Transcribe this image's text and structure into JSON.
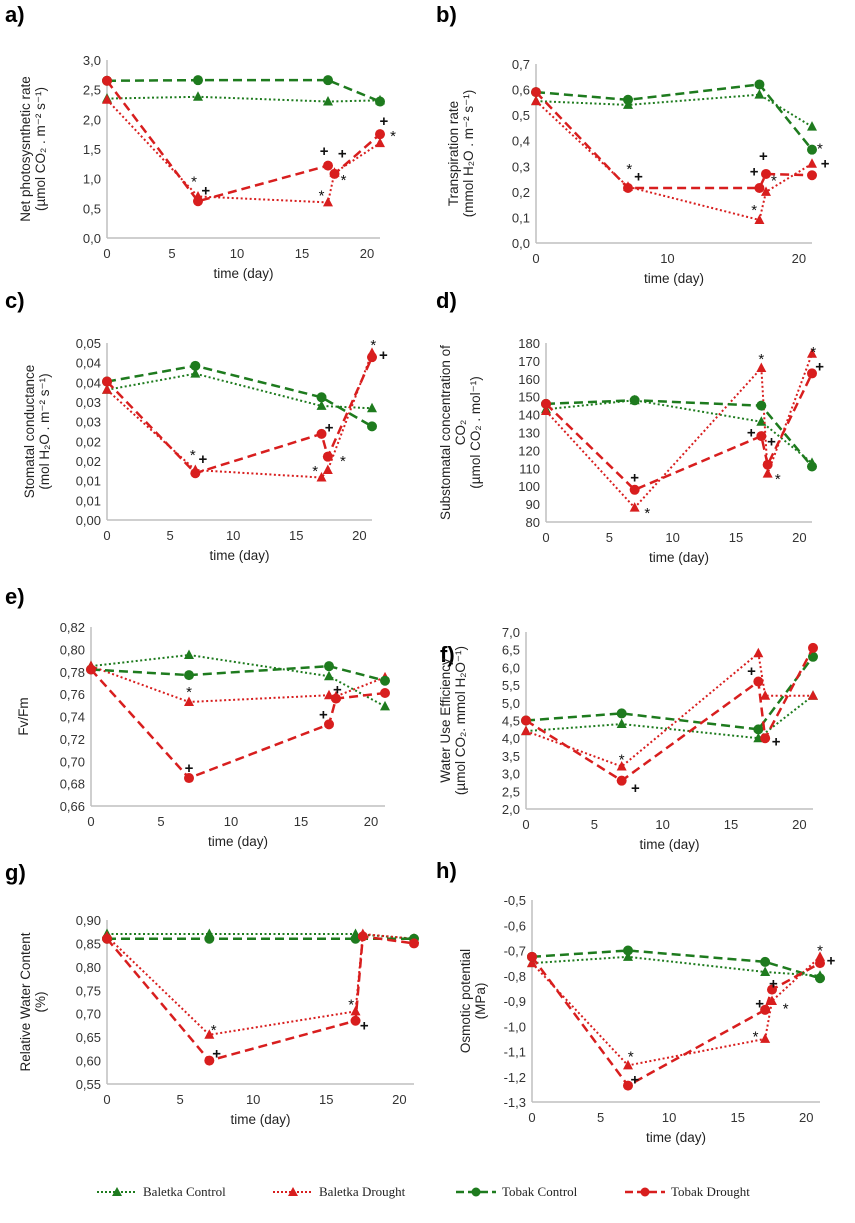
{
  "colors": {
    "control": "#1e7b1e",
    "drought": "#d81e1e",
    "axis": "#bfbfbf"
  },
  "series_styles": [
    {
      "name": "Baletka Control",
      "color": "control",
      "line": "dotted",
      "marker": "triangle"
    },
    {
      "name": "Baletka Drought",
      "color": "drought",
      "line": "dotted",
      "marker": "triangle"
    },
    {
      "name": "Tobak Control",
      "color": "control",
      "line": "dashed",
      "marker": "circle"
    },
    {
      "name": "Tobak Drought",
      "color": "drought",
      "line": "dashed",
      "marker": "circle"
    }
  ],
  "legend": {
    "items": [
      "Baletka Control",
      "Baletka Drought",
      "Tobak Control",
      "Tobak Drought"
    ],
    "placement": "bottom"
  },
  "chart_data": [
    {
      "panel": "a)",
      "type": "line",
      "xlabel": "time (day)",
      "ylabel": [
        "Net photosysnthetic rate",
        "(µmol CO₂ . m⁻² s⁻¹)"
      ],
      "xlim": [
        0,
        21
      ],
      "xticks": [
        0,
        5,
        10,
        15,
        20
      ],
      "ylim": [
        0,
        3
      ],
      "yticks": [
        0,
        0.5,
        1,
        1.5,
        2,
        2.5,
        3
      ],
      "ytick_labels": [
        "0,0",
        "0,5",
        "1,0",
        "1,5",
        "2,0",
        "2,5",
        "3,0"
      ],
      "series": [
        {
          "name": "Baletka Control",
          "x": [
            0,
            7,
            17,
            21
          ],
          "y": [
            2.35,
            2.38,
            2.3,
            2.32
          ]
        },
        {
          "name": "Baletka Drought",
          "x": [
            0,
            7,
            17,
            17.5,
            21
          ],
          "y": [
            2.33,
            0.7,
            0.6,
            1.1,
            1.6
          ]
        },
        {
          "name": "Tobak Control",
          "x": [
            0,
            7,
            17,
            21
          ],
          "y": [
            2.65,
            2.66,
            2.66,
            2.3
          ]
        },
        {
          "name": "Tobak Drought",
          "x": [
            0,
            7,
            17,
            17.5,
            21
          ],
          "y": [
            2.65,
            0.62,
            1.22,
            1.08,
            1.75
          ]
        }
      ],
      "annotations": [
        {
          "t": "*",
          "x": 6.7,
          "y": 0.95
        },
        {
          "t": "+",
          "x": 7.6,
          "y": 0.8
        },
        {
          "t": "+",
          "x": 16.7,
          "y": 1.47
        },
        {
          "t": "+",
          "x": 18.1,
          "y": 1.42
        },
        {
          "t": "*",
          "x": 16.5,
          "y": 0.72
        },
        {
          "t": "*",
          "x": 18.2,
          "y": 0.98
        },
        {
          "t": "+",
          "x": 21.3,
          "y": 1.97
        },
        {
          "t": "*",
          "x": 22,
          "y": 1.72
        }
      ]
    },
    {
      "panel": "b)",
      "type": "line",
      "xlabel": "time (day)",
      "ylabel": [
        "Transpiration rate",
        "(mmol H₂O . m⁻² s⁻¹)"
      ],
      "xlim": [
        0,
        21
      ],
      "xticks": [
        0,
        10,
        20
      ],
      "ylim": [
        0,
        0.7
      ],
      "yticks": [
        0,
        0.1,
        0.2,
        0.3,
        0.4,
        0.5,
        0.6,
        0.7
      ],
      "ytick_labels": [
        "0,0",
        "0,1",
        "0,2",
        "0,3",
        "0,4",
        "0,5",
        "0,6",
        "0,7"
      ],
      "series": [
        {
          "name": "Baletka Control",
          "x": [
            0,
            7,
            17,
            21
          ],
          "y": [
            0.555,
            0.54,
            0.58,
            0.455
          ]
        },
        {
          "name": "Baletka Drought",
          "x": [
            0,
            7,
            17,
            17.5,
            21
          ],
          "y": [
            0.555,
            0.22,
            0.09,
            0.2,
            0.31
          ]
        },
        {
          "name": "Tobak Control",
          "x": [
            0,
            7,
            17,
            21
          ],
          "y": [
            0.59,
            0.56,
            0.62,
            0.365
          ]
        },
        {
          "name": "Tobak Drought",
          "x": [
            0,
            7,
            17,
            17.5,
            21
          ],
          "y": [
            0.59,
            0.215,
            0.215,
            0.27,
            0.265
          ]
        }
      ],
      "annotations": [
        {
          "t": "*",
          "x": 7.1,
          "y": 0.29
        },
        {
          "t": "+",
          "x": 7.8,
          "y": 0.26
        },
        {
          "t": "+",
          "x": 16.6,
          "y": 0.28
        },
        {
          "t": "+",
          "x": 17.3,
          "y": 0.34
        },
        {
          "t": "*",
          "x": 16.6,
          "y": 0.13
        },
        {
          "t": "*",
          "x": 18.1,
          "y": 0.245
        },
        {
          "t": "*",
          "x": 21.6,
          "y": 0.37
        },
        {
          "t": "+",
          "x": 22,
          "y": 0.31
        }
      ]
    },
    {
      "panel": "c)",
      "type": "line",
      "xlabel": "time (day)",
      "ylabel": [
        "Stomatal conductance",
        "(mol H₂O . m⁻² s⁻¹)"
      ],
      "xlim": [
        0,
        21
      ],
      "xticks": [
        0,
        5,
        10,
        15,
        20
      ],
      "ylim": [
        0,
        0.045
      ],
      "yticks": [
        0,
        0.005,
        0.01,
        0.015,
        0.02,
        0.025,
        0.03,
        0.035,
        0.04,
        0.045
      ],
      "ytick_labels": [
        "0,00",
        "0,01",
        "0,01",
        "0,02",
        "0,02",
        "0,03",
        "0,03",
        "0,04",
        "0,04",
        "0,05"
      ],
      "series": [
        {
          "name": "Baletka Control",
          "x": [
            0,
            7,
            17,
            21
          ],
          "y": [
            0.0331,
            0.0372,
            0.029,
            0.0284
          ]
        },
        {
          "name": "Baletka Drought",
          "x": [
            0,
            7,
            17,
            17.5,
            21
          ],
          "y": [
            0.0331,
            0.0127,
            0.0108,
            0.0127,
            0.0425
          ]
        },
        {
          "name": "Tobak Control",
          "x": [
            0,
            7,
            17,
            21
          ],
          "y": [
            0.0352,
            0.0392,
            0.0312,
            0.0238
          ]
        },
        {
          "name": "Tobak Drought",
          "x": [
            0,
            7,
            17,
            17.5,
            21
          ],
          "y": [
            0.0352,
            0.0119,
            0.0219,
            0.0161,
            0.0414
          ]
        }
      ],
      "annotations": [
        {
          "t": "*",
          "x": 6.8,
          "y": 0.0165
        },
        {
          "t": "+",
          "x": 7.6,
          "y": 0.0155
        },
        {
          "t": "+",
          "x": 17.6,
          "y": 0.0235
        },
        {
          "t": "*",
          "x": 16.5,
          "y": 0.0125
        },
        {
          "t": "*",
          "x": 18.7,
          "y": 0.015
        },
        {
          "t": "*",
          "x": 21.1,
          "y": 0.0445
        },
        {
          "t": "+",
          "x": 21.9,
          "y": 0.042
        }
      ]
    },
    {
      "panel": "d)",
      "type": "line",
      "xlabel": "time (day)",
      "ylabel": [
        "Substomatal concentration of",
        "CO₂",
        "(µmol CO₂ . mol⁻¹)"
      ],
      "xlim": [
        0,
        21
      ],
      "xticks": [
        0,
        5,
        10,
        15,
        20
      ],
      "ylim": [
        80,
        180
      ],
      "yticks": [
        80,
        90,
        100,
        110,
        120,
        130,
        140,
        150,
        160,
        170,
        180
      ],
      "ytick_labels": [
        "80",
        "90",
        "100",
        "110",
        "120",
        "130",
        "140",
        "150",
        "160",
        "170",
        "180"
      ],
      "series": [
        {
          "name": "Baletka Control",
          "x": [
            0,
            7,
            17,
            21
          ],
          "y": [
            143,
            148,
            136,
            113
          ]
        },
        {
          "name": "Baletka Drought",
          "x": [
            0,
            7,
            17,
            17.5,
            21
          ],
          "y": [
            142,
            88,
            166,
            107,
            174
          ]
        },
        {
          "name": "Tobak Control",
          "x": [
            0,
            7,
            17,
            21
          ],
          "y": [
            146,
            148,
            145,
            111
          ]
        },
        {
          "name": "Tobak Drought",
          "x": [
            0,
            7,
            17,
            17.5,
            21
          ],
          "y": [
            146,
            98,
            128,
            112,
            163
          ]
        }
      ],
      "annotations": [
        {
          "t": "+",
          "x": 7,
          "y": 105
        },
        {
          "t": "*",
          "x": 8,
          "y": 85
        },
        {
          "t": "*",
          "x": 17,
          "y": 171
        },
        {
          "t": "+",
          "x": 16.2,
          "y": 130
        },
        {
          "t": "+",
          "x": 17.8,
          "y": 125
        },
        {
          "t": "*",
          "x": 18.3,
          "y": 104
        },
        {
          "t": "*",
          "x": 21.1,
          "y": 175
        },
        {
          "t": "+",
          "x": 21.6,
          "y": 167
        }
      ]
    },
    {
      "panel": "e)",
      "type": "line",
      "xlabel": "time (day)",
      "ylabel": [
        "Fv/Fm"
      ],
      "xlim": [
        0,
        21
      ],
      "xticks": [
        0,
        5,
        10,
        15,
        20
      ],
      "ylim": [
        0.66,
        0.82
      ],
      "yticks": [
        0.66,
        0.68,
        0.7,
        0.72,
        0.74,
        0.76,
        0.78,
        0.8,
        0.82
      ],
      "ytick_labels": [
        "0,66",
        "0,68",
        "0,70",
        "0,72",
        "0,74",
        "0,76",
        "0,78",
        "0,80",
        "0,82"
      ],
      "series": [
        {
          "name": "Baletka Control",
          "x": [
            0,
            7,
            17,
            21
          ],
          "y": [
            0.785,
            0.795,
            0.776,
            0.749
          ]
        },
        {
          "name": "Baletka Drought",
          "x": [
            0,
            7,
            17,
            17.5,
            21
          ],
          "y": [
            0.785,
            0.753,
            0.759,
            0.758,
            0.775
          ]
        },
        {
          "name": "Tobak Control",
          "x": [
            0,
            7,
            17,
            21
          ],
          "y": [
            0.782,
            0.777,
            0.785,
            0.772
          ]
        },
        {
          "name": "Tobak Drought",
          "x": [
            0,
            7,
            17,
            17.5,
            21
          ],
          "y": [
            0.782,
            0.685,
            0.733,
            0.756,
            0.761
          ]
        }
      ],
      "annotations": [
        {
          "t": "*",
          "x": 7,
          "y": 0.762
        },
        {
          "t": "+",
          "x": 7,
          "y": 0.694
        },
        {
          "t": "+",
          "x": 16.6,
          "y": 0.742
        },
        {
          "t": "+",
          "x": 17.6,
          "y": 0.764
        }
      ]
    },
    {
      "panel": "f)",
      "type": "line",
      "xlabel": "time (day)",
      "ylabel": [
        "Water Use Efficiency",
        "(µmol CO₂. mmol H₂O⁻¹)"
      ],
      "xlim": [
        0,
        21
      ],
      "xticks": [
        0,
        5,
        10,
        15,
        20
      ],
      "ylim": [
        2,
        7
      ],
      "yticks": [
        2,
        2.5,
        3,
        3.5,
        4,
        4.5,
        5,
        5.5,
        6,
        6.5,
        7
      ],
      "ytick_labels": [
        "2,0",
        "2,5",
        "3,0",
        "3,5",
        "4,0",
        "4,5",
        "5,0",
        "5,5",
        "6,0",
        "6,5",
        "7,0"
      ],
      "series": [
        {
          "name": "Baletka Control",
          "x": [
            0,
            7,
            17,
            21
          ],
          "y": [
            4.2,
            4.4,
            4.0,
            5.2
          ]
        },
        {
          "name": "Baletka Drought",
          "x": [
            0,
            7,
            17,
            17.5,
            21
          ],
          "y": [
            4.2,
            3.2,
            6.4,
            5.2,
            5.2
          ]
        },
        {
          "name": "Tobak Control",
          "x": [
            0,
            7,
            17,
            21
          ],
          "y": [
            4.5,
            4.7,
            4.25,
            6.3
          ]
        },
        {
          "name": "Tobak Drought",
          "x": [
            0,
            7,
            17,
            17.5,
            21
          ],
          "y": [
            4.5,
            2.8,
            5.6,
            4.0,
            6.55
          ]
        }
      ],
      "annotations": [
        {
          "t": "*",
          "x": 7,
          "y": 3.4
        },
        {
          "t": "+",
          "x": 8,
          "y": 2.6
        },
        {
          "t": "+",
          "x": 16.5,
          "y": 5.9
        },
        {
          "t": "+",
          "x": 18.3,
          "y": 3.9
        }
      ]
    },
    {
      "panel": "g)",
      "type": "line",
      "xlabel": "time (day)",
      "ylabel": [
        "Relative Water Content",
        "(%)"
      ],
      "xlim": [
        0,
        21
      ],
      "xticks": [
        0,
        5,
        10,
        15,
        20
      ],
      "ylim": [
        0.55,
        0.9
      ],
      "yticks": [
        0.55,
        0.6,
        0.65,
        0.7,
        0.75,
        0.8,
        0.85,
        0.9
      ],
      "ytick_labels": [
        "0,55",
        "0,60",
        "0,65",
        "0,70",
        "0,75",
        "0,80",
        "0,85",
        "0,90"
      ],
      "series": [
        {
          "name": "Baletka Control",
          "x": [
            0,
            7,
            17,
            21
          ],
          "y": [
            0.87,
            0.87,
            0.87,
            0.86
          ]
        },
        {
          "name": "Baletka Drought",
          "x": [
            0,
            7,
            17,
            17.5,
            21
          ],
          "y": [
            0.865,
            0.655,
            0.705,
            0.87,
            0.86
          ]
        },
        {
          "name": "Tobak Control",
          "x": [
            0,
            7,
            17,
            21
          ],
          "y": [
            0.86,
            0.86,
            0.86,
            0.86
          ]
        },
        {
          "name": "Tobak Drought",
          "x": [
            0,
            7,
            17,
            17.5,
            21
          ],
          "y": [
            0.86,
            0.6,
            0.685,
            0.865,
            0.85
          ]
        }
      ],
      "annotations": [
        {
          "t": "*",
          "x": 7.3,
          "y": 0.665
        },
        {
          "t": "+",
          "x": 7.5,
          "y": 0.615
        },
        {
          "t": "*",
          "x": 16.7,
          "y": 0.72
        },
        {
          "t": "+",
          "x": 17.6,
          "y": 0.675
        }
      ]
    },
    {
      "panel": "h)",
      "type": "line",
      "xlabel": "time (day)",
      "ylabel": [
        "Osmotic potential",
        "(MPa)"
      ],
      "xlim": [
        0,
        21
      ],
      "xticks": [
        0,
        5,
        10,
        15,
        20
      ],
      "ylim": [
        -1.3,
        -0.5
      ],
      "yticks": [
        -1.3,
        -1.2,
        -1.1,
        -1.0,
        -0.9,
        -0.8,
        -0.7,
        -0.6,
        -0.5
      ],
      "ytick_labels": [
        "-1,3",
        "-1,2",
        "-1,1",
        "-1,0",
        "-0,9",
        "-0,8",
        "-0,7",
        "-0,6",
        "-0,5"
      ],
      "series": [
        {
          "name": "Baletka Control",
          "x": [
            0,
            7,
            17,
            21
          ],
          "y": [
            -0.75,
            -0.725,
            -0.785,
            -0.8
          ]
        },
        {
          "name": "Baletka Drought",
          "x": [
            0,
            7,
            17,
            17.5,
            21
          ],
          "y": [
            -0.75,
            -1.155,
            -1.05,
            -0.9,
            -0.725
          ]
        },
        {
          "name": "Tobak Control",
          "x": [
            0,
            7,
            17,
            21
          ],
          "y": [
            -0.725,
            -0.7,
            -0.745,
            -0.81
          ]
        },
        {
          "name": "Tobak Drought",
          "x": [
            0,
            7,
            17,
            17.5,
            21
          ],
          "y": [
            -0.725,
            -1.235,
            -0.935,
            -0.855,
            -0.75
          ]
        }
      ],
      "annotations": [
        {
          "t": "*",
          "x": 7.2,
          "y": -1.12
        },
        {
          "t": "+",
          "x": 7.5,
          "y": -1.21
        },
        {
          "t": "+",
          "x": 16.6,
          "y": -0.91
        },
        {
          "t": "+",
          "x": 17.6,
          "y": -0.83
        },
        {
          "t": "*",
          "x": 16.3,
          "y": -1.04
        },
        {
          "t": "*",
          "x": 18.5,
          "y": -0.93
        },
        {
          "t": "*",
          "x": 21,
          "y": -0.7
        },
        {
          "t": "+",
          "x": 21.8,
          "y": -0.74
        }
      ]
    }
  ]
}
